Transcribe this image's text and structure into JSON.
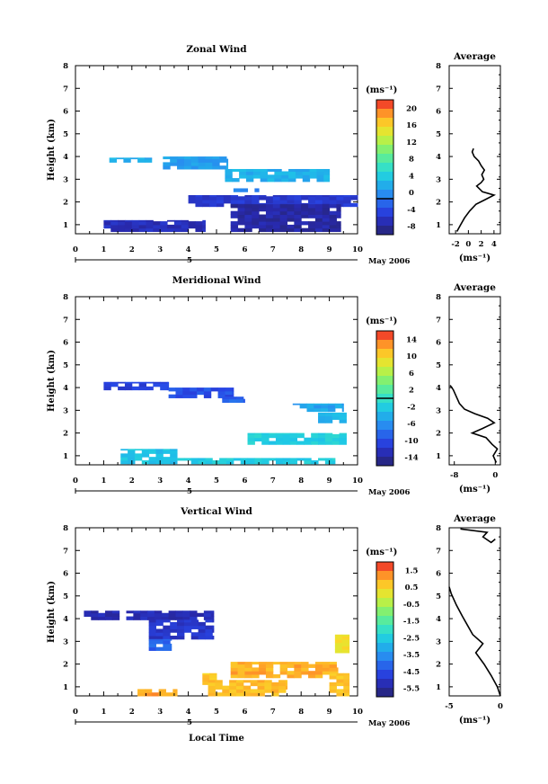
{
  "chart_data": [
    {
      "type": "heatmap",
      "title": "Zonal Wind",
      "xlabel": "",
      "ylabel": "Height (km)",
      "xlim": [
        0,
        10
      ],
      "ylim": [
        0.6,
        8
      ],
      "x_ticks": [
        "0",
        "1",
        "2",
        "3",
        "4",
        "5",
        "6",
        "7",
        "8",
        "9",
        "10"
      ],
      "y_ticks": [
        "1",
        "2",
        "3",
        "4",
        "5",
        "6",
        "7",
        "8"
      ],
      "date_label": "5",
      "date_right": "May 2006",
      "colorbar": {
        "unit": "(ms⁻¹)",
        "min": -8,
        "max": 22,
        "ticks": [
          "20",
          "16",
          "12",
          "8",
          "4",
          "0",
          "-4",
          "-8"
        ],
        "zero_line": 0
      },
      "regions": [
        {
          "x": [
            1.2,
            2.7
          ],
          "y": [
            3.75,
            3.95
          ],
          "value": 3
        },
        {
          "x": [
            3.1,
            5.4
          ],
          "y": [
            3.45,
            4.0
          ],
          "value": 2
        },
        {
          "x": [
            5.3,
            9.0
          ],
          "y": [
            2.9,
            3.45
          ],
          "value": 3
        },
        {
          "x": [
            5.6,
            6.5
          ],
          "y": [
            2.45,
            2.6
          ],
          "value": 1
        },
        {
          "x": [
            4.0,
            10.0
          ],
          "y": [
            1.8,
            2.3
          ],
          "value": -4
        },
        {
          "x": [
            5.5,
            9.4
          ],
          "y": [
            0.7,
            1.9
          ],
          "value": -6
        },
        {
          "x": [
            1.0,
            4.6
          ],
          "y": [
            0.7,
            1.2
          ],
          "value": -5
        }
      ],
      "average": {
        "title": "Average",
        "xlabel": "(ms⁻¹)",
        "xlim": [
          -3,
          5
        ],
        "x_ticks": [
          "-2",
          "0",
          "2",
          "4"
        ],
        "profile": [
          {
            "h": 0.7,
            "v": -1.8
          },
          {
            "h": 1.0,
            "v": -1.2
          },
          {
            "h": 1.3,
            "v": -0.6
          },
          {
            "h": 1.6,
            "v": 0.2
          },
          {
            "h": 1.9,
            "v": 1.2
          },
          {
            "h": 2.1,
            "v": 2.6
          },
          {
            "h": 2.3,
            "v": 4.0
          },
          {
            "h": 2.45,
            "v": 2.2
          },
          {
            "h": 2.7,
            "v": 1.3
          },
          {
            "h": 2.85,
            "v": 2.0
          },
          {
            "h": 3.0,
            "v": 2.4
          },
          {
            "h": 3.2,
            "v": 2.1
          },
          {
            "h": 3.4,
            "v": 2.5
          },
          {
            "h": 3.6,
            "v": 2.0
          },
          {
            "h": 3.8,
            "v": 1.6
          },
          {
            "h": 4.0,
            "v": 0.9
          },
          {
            "h": 4.2,
            "v": 0.6
          },
          {
            "h": 4.35,
            "v": 0.8
          }
        ]
      }
    },
    {
      "type": "heatmap",
      "title": "Meridional Wind",
      "xlabel": "",
      "ylabel": "Height (km)",
      "xlim": [
        0,
        10
      ],
      "ylim": [
        0.6,
        8
      ],
      "x_ticks": [
        "0",
        "1",
        "2",
        "3",
        "4",
        "5",
        "6",
        "7",
        "8",
        "9",
        "10"
      ],
      "y_ticks": [
        "1",
        "2",
        "3",
        "4",
        "5",
        "6",
        "7",
        "8"
      ],
      "date_label": "5",
      "date_right": "May 2006",
      "colorbar": {
        "unit": "(ms⁻¹)",
        "min": -16,
        "max": 16,
        "ticks": [
          "14",
          "10",
          "6",
          "2",
          "-2",
          "-6",
          "-10",
          "-14"
        ],
        "zero_line": 0
      },
      "regions": [
        {
          "x": [
            1.0,
            3.3
          ],
          "y": [
            3.9,
            4.25
          ],
          "value": -11
        },
        {
          "x": [
            3.3,
            5.6
          ],
          "y": [
            3.55,
            4.0
          ],
          "value": -10
        },
        {
          "x": [
            5.2,
            6.0
          ],
          "y": [
            3.35,
            3.6
          ],
          "value": -9
        },
        {
          "x": [
            7.7,
            9.5
          ],
          "y": [
            2.95,
            3.3
          ],
          "value": -5
        },
        {
          "x": [
            6.1,
            9.6
          ],
          "y": [
            1.5,
            2.0
          ],
          "value": -2
        },
        {
          "x": [
            8.6,
            9.6
          ],
          "y": [
            2.45,
            2.9
          ],
          "value": -4
        },
        {
          "x": [
            1.6,
            3.6
          ],
          "y": [
            0.65,
            1.3
          ],
          "value": -3
        },
        {
          "x": [
            3.6,
            9.2
          ],
          "y": [
            0.65,
            0.9
          ],
          "value": -2
        }
      ],
      "average": {
        "title": "Average",
        "xlabel": "(ms⁻¹)",
        "xlim": [
          -9,
          1
        ],
        "x_ticks": [
          "-8",
          "0"
        ],
        "profile": [
          {
            "h": 0.7,
            "v": 0.2
          },
          {
            "h": 1.0,
            "v": -0.4
          },
          {
            "h": 1.3,
            "v": 0.4
          },
          {
            "h": 1.5,
            "v": -0.6
          },
          {
            "h": 1.8,
            "v": -1.8
          },
          {
            "h": 2.0,
            "v": -4.5
          },
          {
            "h": 2.2,
            "v": -2.5
          },
          {
            "h": 2.45,
            "v": -0.2
          },
          {
            "h": 2.65,
            "v": -1.5
          },
          {
            "h": 2.85,
            "v": -4.0
          },
          {
            "h": 3.05,
            "v": -6.0
          },
          {
            "h": 3.3,
            "v": -7.0
          },
          {
            "h": 3.6,
            "v": -7.6
          },
          {
            "h": 3.9,
            "v": -8.2
          },
          {
            "h": 4.1,
            "v": -8.8
          }
        ]
      }
    },
    {
      "type": "heatmap",
      "title": "Vertical Wind",
      "xlabel": "Local Time",
      "ylabel": "Height (km)",
      "xlim": [
        0,
        10
      ],
      "ylim": [
        0.6,
        8
      ],
      "x_ticks": [
        "0",
        "1",
        "2",
        "3",
        "4",
        "5",
        "6",
        "7",
        "8",
        "9",
        "10"
      ],
      "y_ticks": [
        "1",
        "2",
        "3",
        "4",
        "5",
        "6",
        "7",
        "8"
      ],
      "date_label": "5",
      "date_right": "May 2006",
      "colorbar": {
        "unit": "(ms⁻¹)",
        "min": -6,
        "max": 2,
        "ticks": [
          "1.5",
          "0.5",
          "-0.5",
          "-1.5",
          "-2.5",
          "-3.5",
          "-4.5",
          "-5.5"
        ],
        "zero_line": null
      },
      "regions": [
        {
          "x": [
            0.3,
            4.9
          ],
          "y": [
            3.95,
            4.35
          ],
          "value": -5.3
        },
        {
          "x": [
            2.6,
            4.9
          ],
          "y": [
            3.1,
            3.95
          ],
          "value": -5.0
        },
        {
          "x": [
            2.6,
            3.4
          ],
          "y": [
            2.6,
            3.1
          ],
          "value": -4.2
        },
        {
          "x": [
            4.5,
            5.0
          ],
          "y": [
            1.1,
            1.6
          ],
          "value": 0.6
        },
        {
          "x": [
            5.5,
            9.3
          ],
          "y": [
            1.4,
            2.1
          ],
          "value": 0.9
        },
        {
          "x": [
            4.7,
            7.5
          ],
          "y": [
            0.6,
            1.3
          ],
          "value": 0.8
        },
        {
          "x": [
            2.2,
            3.6
          ],
          "y": [
            0.6,
            0.9
          ],
          "value": 1.0
        },
        {
          "x": [
            9.2,
            9.7
          ],
          "y": [
            2.5,
            3.3
          ],
          "value": 0.2
        },
        {
          "x": [
            9.0,
            9.7
          ],
          "y": [
            0.6,
            1.6
          ],
          "value": 0.7
        }
      ],
      "average": {
        "title": "Average",
        "xlabel": "(ms⁻¹)",
        "xlim": [
          -5,
          0
        ],
        "x_ticks": [
          "-5",
          "0"
        ],
        "profile": [
          {
            "h": 0.6,
            "v": 0.0
          },
          {
            "h": 1.0,
            "v": -0.3
          },
          {
            "h": 1.5,
            "v": -0.9
          },
          {
            "h": 2.0,
            "v": -1.6
          },
          {
            "h": 2.5,
            "v": -2.4
          },
          {
            "h": 2.9,
            "v": -1.7
          },
          {
            "h": 3.3,
            "v": -2.7
          },
          {
            "h": 3.7,
            "v": -3.2
          },
          {
            "h": 4.1,
            "v": -3.7
          },
          {
            "h": 4.6,
            "v": -4.3
          },
          {
            "h": 5.1,
            "v": -4.8
          },
          {
            "h": 5.4,
            "v": -5.0
          }
        ],
        "profile_upper": [
          {
            "h": 7.95,
            "v": -3.9
          },
          {
            "h": 7.8,
            "v": -1.3
          },
          {
            "h": 7.6,
            "v": -1.7
          },
          {
            "h": 7.35,
            "v": -0.9
          },
          {
            "h": 7.5,
            "v": -0.5
          }
        ]
      }
    }
  ]
}
